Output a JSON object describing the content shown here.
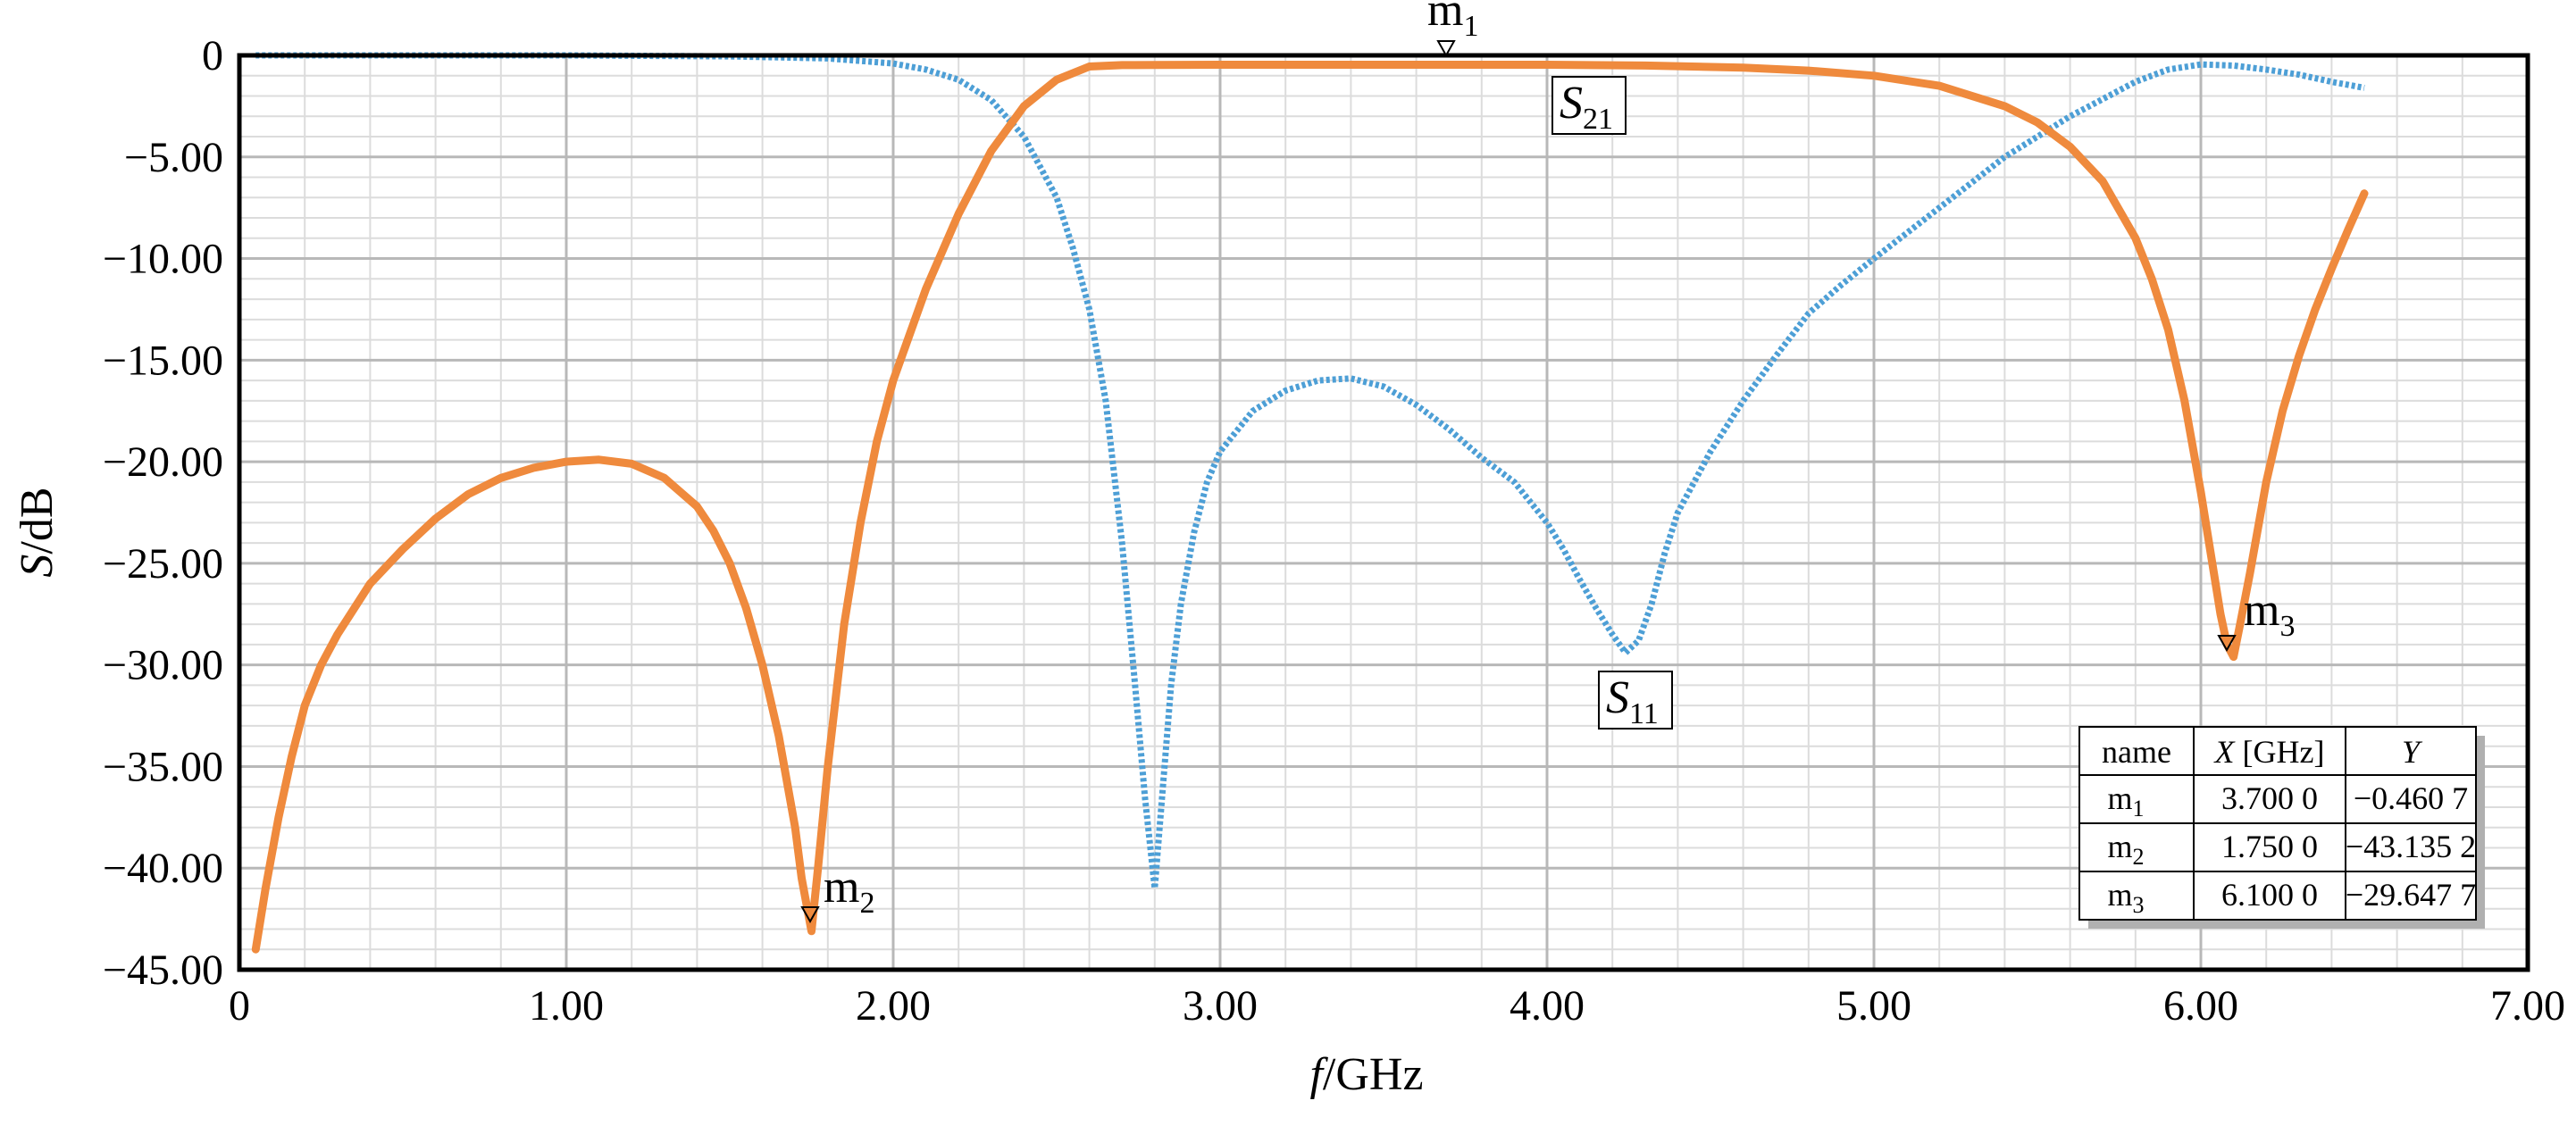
{
  "chart_data": {
    "type": "line",
    "xlabel": {
      "italic": "f",
      "rest": "/GHz"
    },
    "ylabel": {
      "italic": "S",
      "rest": "/dB"
    },
    "xlim": [
      0,
      7
    ],
    "ylim": [
      -45,
      0
    ],
    "x_ticks": [
      {
        "value": 0,
        "label": "0"
      },
      {
        "value": 1,
        "label": "1.00"
      },
      {
        "value": 2,
        "label": "2.00"
      },
      {
        "value": 3,
        "label": "3.00"
      },
      {
        "value": 4,
        "label": "4.00"
      },
      {
        "value": 5,
        "label": "5.00"
      },
      {
        "value": 6,
        "label": "6.00"
      },
      {
        "value": 7,
        "label": "7.00"
      }
    ],
    "y_ticks": [
      {
        "value": 0,
        "label": "0"
      },
      {
        "value": -5,
        "label": "−5.00"
      },
      {
        "value": -10,
        "label": "−10.00"
      },
      {
        "value": -15,
        "label": "−15.00"
      },
      {
        "value": -20,
        "label": "−20.00"
      },
      {
        "value": -25,
        "label": "−25.00"
      },
      {
        "value": -30,
        "label": "−30.00"
      },
      {
        "value": -35,
        "label": "−35.00"
      },
      {
        "value": -40,
        "label": "−40.00"
      },
      {
        "value": -45,
        "label": "−45.00"
      }
    ],
    "grid": true,
    "series": [
      {
        "name": "S21",
        "label_main": "S",
        "label_sub": "21",
        "color": "#ef8a3d",
        "style": "solid",
        "x": [
          0.05,
          0.08,
          0.12,
          0.16,
          0.2,
          0.25,
          0.3,
          0.4,
          0.5,
          0.6,
          0.7,
          0.8,
          0.9,
          1.0,
          1.1,
          1.2,
          1.3,
          1.4,
          1.45,
          1.5,
          1.55,
          1.6,
          1.65,
          1.7,
          1.72,
          1.75,
          1.77,
          1.8,
          1.85,
          1.9,
          1.95,
          2.0,
          2.1,
          2.2,
          2.3,
          2.4,
          2.5,
          2.6,
          2.7,
          2.8,
          3.0,
          3.3,
          3.7,
          4.0,
          4.3,
          4.6,
          4.8,
          5.0,
          5.2,
          5.4,
          5.5,
          5.6,
          5.7,
          5.8,
          5.85,
          5.9,
          5.95,
          6.0,
          6.03,
          6.06,
          6.08,
          6.1,
          6.12,
          6.15,
          6.2,
          6.25,
          6.3,
          6.35,
          6.4,
          6.45,
          6.5
        ],
        "y": [
          -44,
          -41,
          -37.5,
          -34.5,
          -32,
          -30,
          -28.5,
          -26,
          -24.3,
          -22.8,
          -21.6,
          -20.8,
          -20.3,
          -20.0,
          -19.9,
          -20.1,
          -20.8,
          -22.2,
          -23.4,
          -25.0,
          -27.2,
          -30.0,
          -33.5,
          -38.0,
          -40.5,
          -43.1,
          -40.0,
          -35.0,
          -28.0,
          -23.0,
          -19.0,
          -16.0,
          -11.5,
          -7.8,
          -4.7,
          -2.5,
          -1.2,
          -0.55,
          -0.48,
          -0.47,
          -0.46,
          -0.46,
          -0.46,
          -0.46,
          -0.5,
          -0.6,
          -0.75,
          -1.0,
          -1.5,
          -2.5,
          -3.3,
          -4.5,
          -6.2,
          -9.0,
          -11.0,
          -13.5,
          -17.0,
          -21.5,
          -24.5,
          -27.5,
          -29.0,
          -29.6,
          -28.0,
          -25.5,
          -21.0,
          -17.5,
          -14.8,
          -12.5,
          -10.5,
          -8.6,
          -6.8
        ]
      },
      {
        "name": "S11",
        "label_main": "S",
        "label_sub": "11",
        "color": "#4d9fd6",
        "style": "dashed",
        "x": [
          0.05,
          0.5,
          1.0,
          1.5,
          1.8,
          2.0,
          2.1,
          2.2,
          2.3,
          2.4,
          2.5,
          2.55,
          2.6,
          2.65,
          2.7,
          2.74,
          2.77,
          2.8,
          2.82,
          2.85,
          2.88,
          2.92,
          2.96,
          3.0,
          3.1,
          3.2,
          3.3,
          3.4,
          3.5,
          3.6,
          3.7,
          3.8,
          3.9,
          4.0,
          4.05,
          4.1,
          4.15,
          4.2,
          4.24,
          4.28,
          4.32,
          4.36,
          4.4,
          4.5,
          4.6,
          4.7,
          4.8,
          4.9,
          5.0,
          5.2,
          5.4,
          5.6,
          5.8,
          5.9,
          6.0,
          6.1,
          6.2,
          6.3,
          6.4,
          6.5
        ],
        "y": [
          0,
          0,
          0,
          -0.05,
          -0.15,
          -0.4,
          -0.7,
          -1.2,
          -2.2,
          -4.0,
          -7.0,
          -9.5,
          -12.5,
          -17.0,
          -24.0,
          -31.0,
          -36.5,
          -41.0,
          -37.0,
          -31.0,
          -27.0,
          -23.5,
          -21.0,
          -19.5,
          -17.5,
          -16.5,
          -16.0,
          -15.9,
          -16.3,
          -17.2,
          -18.4,
          -19.8,
          -21.0,
          -23.0,
          -24.3,
          -25.8,
          -27.2,
          -28.5,
          -29.4,
          -28.8,
          -27.0,
          -24.5,
          -22.5,
          -19.5,
          -17.0,
          -14.8,
          -12.7,
          -11.3,
          -10.0,
          -7.5,
          -5.0,
          -3.0,
          -1.3,
          -0.7,
          -0.45,
          -0.5,
          -0.7,
          -0.95,
          -1.3,
          -1.6
        ]
      }
    ],
    "markers": [
      {
        "name": "m1",
        "label_main": "m",
        "label_sub": "1",
        "x": 3.7,
        "y": -0.4607
      },
      {
        "name": "m2",
        "label_main": "m",
        "label_sub": "2",
        "x": 1.75,
        "y": -43.1352
      },
      {
        "name": "m3",
        "label_main": "m",
        "label_sub": "3",
        "x": 6.1,
        "y": -29.6477
      }
    ],
    "marker_table": {
      "headers": {
        "name": "name",
        "x_main": "X",
        "x_unit": " [GHz]",
        "y": "Y"
      },
      "rows": [
        {
          "name_main": "m",
          "name_sub": "1",
          "x": "3.700 0",
          "y": "−0.460 7"
        },
        {
          "name_main": "m",
          "name_sub": "2",
          "x": "1.750 0",
          "y": "−43.135 2"
        },
        {
          "name_main": "m",
          "name_sub": "3",
          "x": "6.100 0",
          "y": "−29.647 7"
        }
      ]
    }
  }
}
